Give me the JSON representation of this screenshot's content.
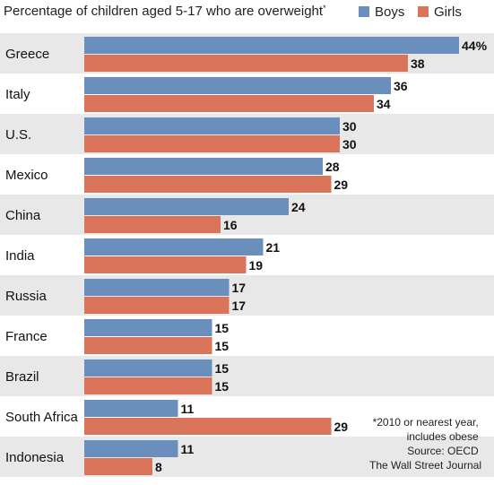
{
  "chart_data": {
    "type": "bar",
    "orientation": "horizontal",
    "title": "Percentage of children aged 5-17 who are overweight",
    "title_mark": "*",
    "categories": [
      "Greece",
      "Italy",
      "U.S.",
      "Mexico",
      "China",
      "India",
      "Russia",
      "France",
      "Brazil",
      "South Africa",
      "Indonesia"
    ],
    "series": [
      {
        "name": "Boys",
        "color": "#6b8fbd",
        "values": [
          44,
          36,
          30,
          28,
          24,
          21,
          17,
          15,
          15,
          11,
          11
        ]
      },
      {
        "name": "Girls",
        "color": "#d9735a",
        "values": [
          38,
          34,
          30,
          29,
          16,
          19,
          17,
          15,
          15,
          29,
          8
        ]
      }
    ],
    "value_labels": {
      "Boys": [
        "44%",
        "36",
        "30",
        "28",
        "24",
        "21",
        "17",
        "15",
        "15",
        "11",
        "11"
      ],
      "Girls": [
        "38",
        "34",
        "30",
        "29",
        "16",
        "19",
        "17",
        "15",
        "15",
        "29",
        "8"
      ]
    },
    "xlim": [
      0,
      44
    ],
    "legend_position": "top-right",
    "band_color": "#e8e8e8",
    "notes": [
      "*2010 or nearest year,",
      "includes obese",
      "Source: OECD",
      "The Wall Street Journal"
    ]
  }
}
